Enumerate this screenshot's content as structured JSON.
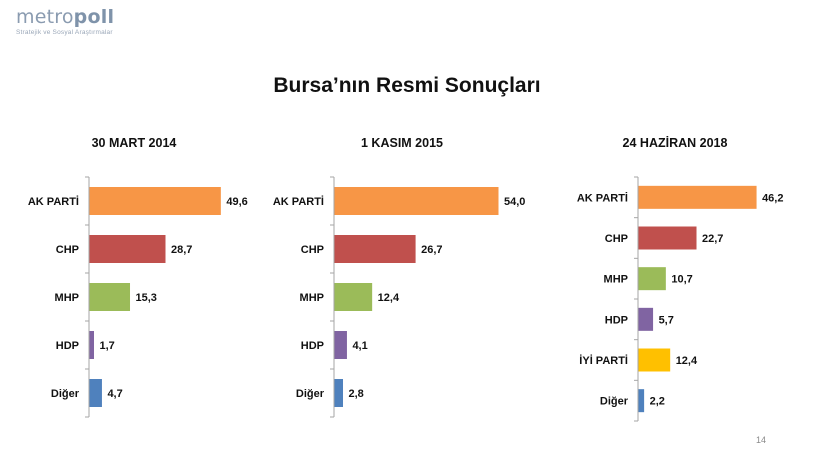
{
  "logo": {
    "name_light": "metro",
    "name_bold": "poll",
    "tagline": "Stratejik ve Sosyal Araştırmalar"
  },
  "title": "Bursa’nın Resmi Sonuçları",
  "page_number": "14",
  "colors": {
    "AK PARTİ": "#f79646",
    "CHP": "#c0504d",
    "MHP": "#9bbb59",
    "HDP": "#8064a2",
    "İYİ PARTİ": "#ffc000",
    "Diğer": "#4f81bd"
  },
  "chart_data": [
    {
      "type": "bar",
      "orientation": "horizontal",
      "title": "30 MART 2014",
      "categories": [
        "AK PARTİ",
        "CHP",
        "MHP",
        "HDP",
        "Diğer"
      ],
      "values": [
        49.6,
        28.7,
        15.3,
        1.7,
        4.7
      ],
      "labels": [
        "49,6",
        "28,7",
        "15,3",
        "1,7",
        "4,7"
      ],
      "xlim": [
        0,
        54
      ]
    },
    {
      "type": "bar",
      "orientation": "horizontal",
      "title": "1 KASIM 2015",
      "categories": [
        "AK PARTİ",
        "CHP",
        "MHP",
        "HDP",
        "Diğer"
      ],
      "values": [
        54.0,
        26.7,
        12.4,
        4.1,
        2.8
      ],
      "labels": [
        "54,0",
        "26,7",
        "12,4",
        "4,1",
        "2,8"
      ],
      "xlim": [
        0,
        54
      ]
    },
    {
      "type": "bar",
      "orientation": "horizontal",
      "title": "24 HAZİRAN 2018",
      "categories": [
        "AK PARTİ",
        "CHP",
        "MHP",
        "HDP",
        "İYİ PARTİ",
        "Diğer"
      ],
      "values": [
        46.2,
        22.7,
        10.7,
        5.7,
        12.4,
        2.2
      ],
      "labels": [
        "46,2",
        "22,7",
        "10,7",
        "5,7",
        "12,4",
        "2,2"
      ],
      "xlim": [
        0,
        54
      ]
    }
  ]
}
